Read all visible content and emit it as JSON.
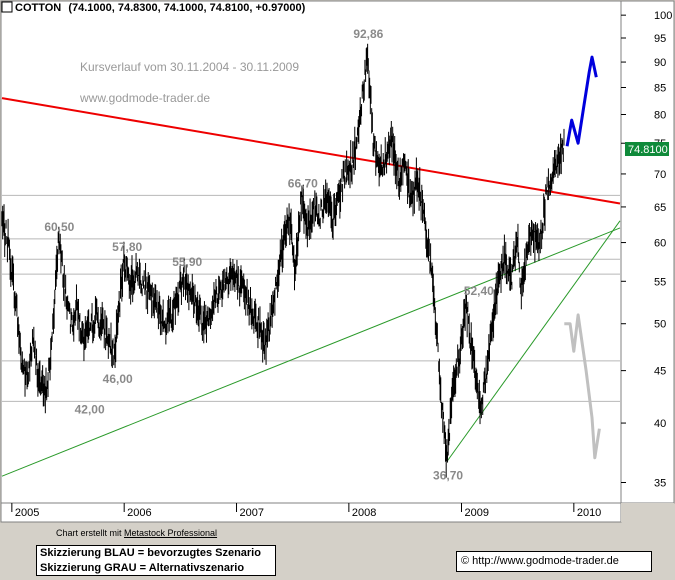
{
  "header": {
    "symbol": "COTTON",
    "ohlc": "(74.1000, 74.8300, 74.1000, 74.8100, +0.97000)"
  },
  "chart_data": {
    "type": "bar",
    "subtype": "ohlc-price-chart",
    "title": "Kursverlauf vom 30.11.2004 - 30.11.2009",
    "source_text": "www.godmode-trader.de",
    "yscale": "log",
    "ylim": [
      33.5,
      103
    ],
    "y_ticks": [
      35,
      40,
      45,
      50,
      55,
      60,
      65,
      70,
      75,
      80,
      85,
      90,
      95,
      100
    ],
    "x_ticks": [
      "2005",
      "2006",
      "2007",
      "2008",
      "2009",
      "2010"
    ],
    "x_range": [
      "2004-11-30",
      "2010-05-31"
    ],
    "last_price": "74.8100",
    "price_labels": [
      {
        "label": "92,86",
        "date": "2008-03-01"
      },
      {
        "label": "66,70",
        "date": "2007-08-01"
      },
      {
        "label": "60,50",
        "date": "2005-06-01"
      },
      {
        "label": "57,80",
        "date": "2006-01-01"
      },
      {
        "label": "55,90",
        "date": "2006-07-15"
      },
      {
        "label": "46,00",
        "date": "2005-12-01"
      },
      {
        "label": "42,00",
        "date": "2005-09-01"
      },
      {
        "label": "52,40",
        "date": "2009-01-15"
      },
      {
        "label": "36,70",
        "date": "2008-11-15"
      }
    ],
    "horizontal_levels": [
      66.7,
      60.5,
      57.8,
      55.9,
      46.0,
      42.0
    ],
    "price_path": [
      [
        "2004-11-30",
        63
      ],
      [
        "2004-12-20",
        60
      ],
      [
        "2005-01-15",
        52
      ],
      [
        "2005-02-01",
        46
      ],
      [
        "2005-02-20",
        44
      ],
      [
        "2005-03-10",
        48
      ],
      [
        "2005-04-01",
        44
      ],
      [
        "2005-04-20",
        42.5
      ],
      [
        "2005-05-10",
        47
      ],
      [
        "2005-06-01",
        60.5
      ],
      [
        "2005-06-20",
        55
      ],
      [
        "2005-07-10",
        50
      ],
      [
        "2005-08-01",
        52
      ],
      [
        "2005-08-20",
        48
      ],
      [
        "2005-09-10",
        49
      ],
      [
        "2005-10-01",
        51
      ],
      [
        "2005-11-01",
        49
      ],
      [
        "2005-12-01",
        46.5
      ],
      [
        "2006-01-01",
        57.8
      ],
      [
        "2006-01-20",
        55
      ],
      [
        "2006-02-15",
        56
      ],
      [
        "2006-03-15",
        54
      ],
      [
        "2006-04-15",
        52
      ],
      [
        "2006-05-15",
        50
      ],
      [
        "2006-06-15",
        52
      ],
      [
        "2006-07-15",
        55.9
      ],
      [
        "2006-08-15",
        53
      ],
      [
        "2006-09-15",
        50
      ],
      [
        "2006-10-15",
        52
      ],
      [
        "2006-11-15",
        54.5
      ],
      [
        "2006-12-15",
        56
      ],
      [
        "2007-01-15",
        54
      ],
      [
        "2007-02-15",
        52
      ],
      [
        "2007-03-15",
        50
      ],
      [
        "2007-04-01",
        47.5
      ],
      [
        "2007-04-20",
        50
      ],
      [
        "2007-05-10",
        55
      ],
      [
        "2007-06-01",
        60
      ],
      [
        "2007-06-20",
        64
      ],
      [
        "2007-07-10",
        56
      ],
      [
        "2007-08-01",
        66.7
      ],
      [
        "2007-08-20",
        62
      ],
      [
        "2007-09-10",
        65
      ],
      [
        "2007-10-01",
        64
      ],
      [
        "2007-10-20",
        66
      ],
      [
        "2007-11-10",
        63
      ],
      [
        "2007-12-01",
        67
      ],
      [
        "2007-12-20",
        70
      ],
      [
        "2008-01-15",
        72
      ],
      [
        "2008-02-10",
        80
      ],
      [
        "2008-03-01",
        92.86
      ],
      [
        "2008-03-20",
        75
      ],
      [
        "2008-04-10",
        71
      ],
      [
        "2008-05-01",
        73
      ],
      [
        "2008-05-20",
        76
      ],
      [
        "2008-06-10",
        69
      ],
      [
        "2008-07-01",
        71
      ],
      [
        "2008-07-20",
        66
      ],
      [
        "2008-08-10",
        69
      ],
      [
        "2008-09-01",
        64
      ],
      [
        "2008-09-20",
        58
      ],
      [
        "2008-10-10",
        50
      ],
      [
        "2008-10-25",
        43
      ],
      [
        "2008-11-15",
        36.7
      ],
      [
        "2008-12-01",
        42
      ],
      [
        "2008-12-15",
        45
      ],
      [
        "2009-01-01",
        48
      ],
      [
        "2009-01-15",
        52.4
      ],
      [
        "2009-02-01",
        48
      ],
      [
        "2009-02-20",
        44
      ],
      [
        "2009-03-05",
        41.5
      ],
      [
        "2009-03-20",
        44
      ],
      [
        "2009-04-10",
        50
      ],
      [
        "2009-05-01",
        55
      ],
      [
        "2009-05-20",
        58
      ],
      [
        "2009-06-10",
        55
      ],
      [
        "2009-07-01",
        60
      ],
      [
        "2009-07-15",
        54
      ],
      [
        "2009-08-01",
        58
      ],
      [
        "2009-08-20",
        62
      ],
      [
        "2009-09-10",
        59
      ],
      [
        "2009-10-01",
        66
      ],
      [
        "2009-10-20",
        70
      ],
      [
        "2009-11-10",
        72
      ],
      [
        "2009-11-30",
        74.81
      ]
    ],
    "trendlines": [
      {
        "name": "red-resistance",
        "color": "#ee0000",
        "from": [
          "2004-11-30",
          83
        ],
        "to": [
          "2010-05-31",
          65.5
        ]
      },
      {
        "name": "green-support-long",
        "color": "#2a9a2a",
        "from": [
          "2004-11-30",
          35.5
        ],
        "to": [
          "2010-05-31",
          62
        ]
      },
      {
        "name": "green-support-short",
        "color": "#2a9a2a",
        "from": [
          "2008-11-15",
          36.7
        ],
        "to": [
          "2010-05-31",
          63
        ]
      }
    ],
    "scenarios": [
      {
        "name": "blue-preferred",
        "color": "#0000dd",
        "points": [
          [
            "2009-12-10",
            74.5
          ],
          [
            "2009-12-25",
            79
          ],
          [
            "2010-01-15",
            75
          ],
          [
            "2010-02-01",
            81
          ],
          [
            "2010-02-20",
            88
          ],
          [
            "2010-03-01",
            91
          ],
          [
            "2010-03-15",
            87
          ]
        ]
      },
      {
        "name": "grey-alternative",
        "color": "#c0c0c0",
        "points": [
          [
            "2009-12-01",
            50
          ],
          [
            "2009-12-20",
            50
          ],
          [
            "2010-01-01",
            47
          ],
          [
            "2010-01-15",
            51
          ],
          [
            "2010-02-10",
            45
          ],
          [
            "2010-03-01",
            40.5
          ],
          [
            "2010-03-10",
            37
          ],
          [
            "2010-03-25",
            39.5
          ]
        ]
      }
    ]
  },
  "footer": {
    "credit_prefix": "Chart erstellt mit ",
    "credit_link": "Metastock Professional",
    "legend_blue": "Skizzierung BLAU = bevorzugtes Szenario",
    "legend_grey": "Skizzierung GRAU = Alternativszenario",
    "copyright": "© http://www.godmode-trader.de"
  }
}
